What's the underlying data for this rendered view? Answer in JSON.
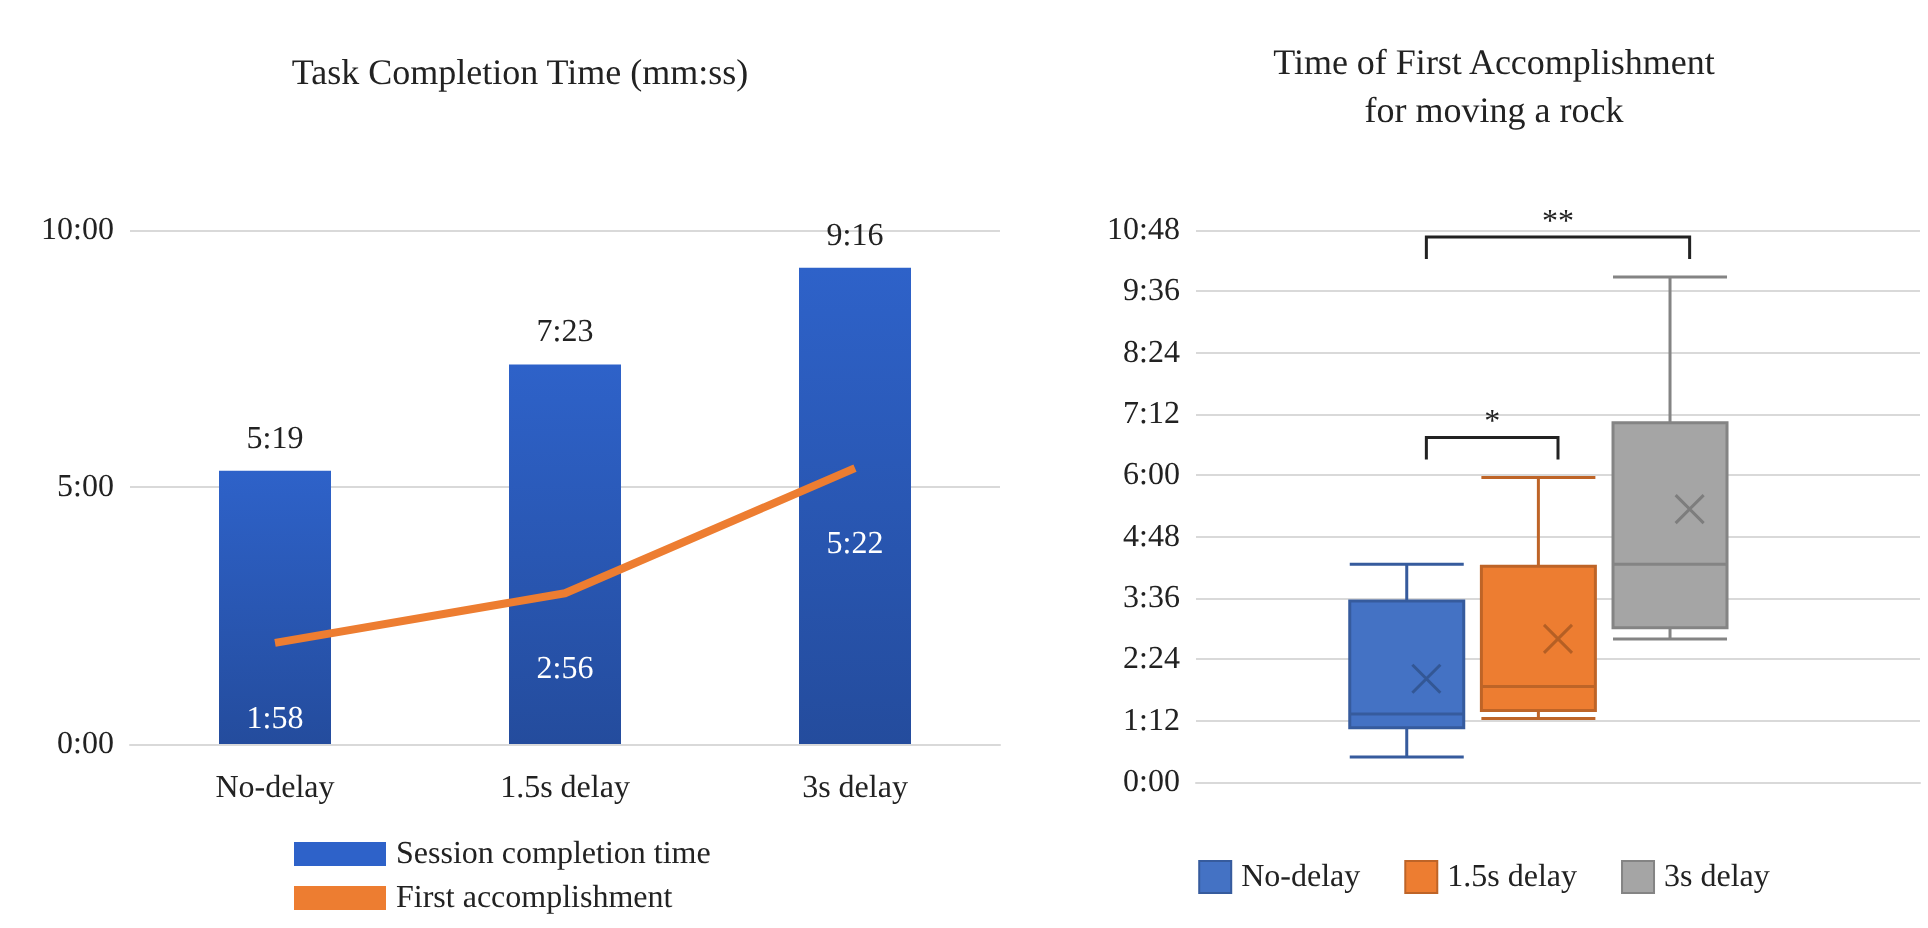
{
  "chart_data": [
    {
      "type": "bar",
      "title": "Task Completion Time (mm:ss)",
      "categories": [
        "No-delay",
        "1.5s delay",
        "3s delay"
      ],
      "series": [
        {
          "name": "Session completion time",
          "type": "bar",
          "color": "#2e62c9",
          "values": [
            5.3167,
            7.3833,
            9.2667
          ],
          "value_labels": [
            "5:19",
            "7:23",
            "9:16"
          ]
        },
        {
          "name": "First accomplishment",
          "type": "line",
          "color": "#ed7d31",
          "values": [
            1.9667,
            2.9333,
            5.3667
          ],
          "value_labels": [
            "1:58",
            "2:56",
            "5:22"
          ]
        }
      ],
      "ylim": [
        0,
        10
      ],
      "yticks": [
        {
          "value": 0,
          "label": "0:00"
        },
        {
          "value": 5,
          "label": "5:00"
        },
        {
          "value": 10,
          "label": "10:00"
        }
      ],
      "grid": "y",
      "legend": "bottom",
      "marker": "none"
    },
    {
      "type": "box",
      "title": "Time of First Accomplishment\nfor moving a rock",
      "categories": [
        null
      ],
      "series": [
        {
          "name": "No-delay",
          "color": "#4472c4",
          "boxes": [
            {
              "low": 0.49,
              "q1": 1.06,
              "median": 1.33,
              "q3": 3.54,
              "high": 4.26,
              "mean": 2.02
            }
          ]
        },
        {
          "name": "1.5s delay",
          "color": "#ed7d31",
          "boxes": [
            {
              "low": 1.24,
              "q1": 1.4,
              "median": 1.87,
              "q3": 4.22,
              "high": 5.96,
              "mean": 2.8
            }
          ]
        },
        {
          "name": "3s delay",
          "color": "#a5a5a5",
          "boxes": [
            {
              "low": 2.8,
              "q1": 3.02,
              "median": 4.26,
              "q3": 7.03,
              "high": 9.88,
              "mean": 5.34
            }
          ]
        }
      ],
      "ylim": [
        0,
        10.8
      ],
      "yticks": [
        {
          "value": 0,
          "label": "0:00"
        },
        {
          "value": 1.2,
          "label": "1:12"
        },
        {
          "value": 2.4,
          "label": "2:24"
        },
        {
          "value": 3.6,
          "label": "3:36"
        },
        {
          "value": 4.8,
          "label": "4:48"
        },
        {
          "value": 6,
          "label": "6:00"
        },
        {
          "value": 7.2,
          "label": "7:12"
        },
        {
          "value": 8.4,
          "label": "8:24"
        },
        {
          "value": 9.6,
          "label": "9:36"
        },
        {
          "value": 10.8,
          "label": "10:48"
        }
      ],
      "grid": "y",
      "legend": "bottom",
      "annotations": [
        "*",
        "**"
      ]
    }
  ]
}
